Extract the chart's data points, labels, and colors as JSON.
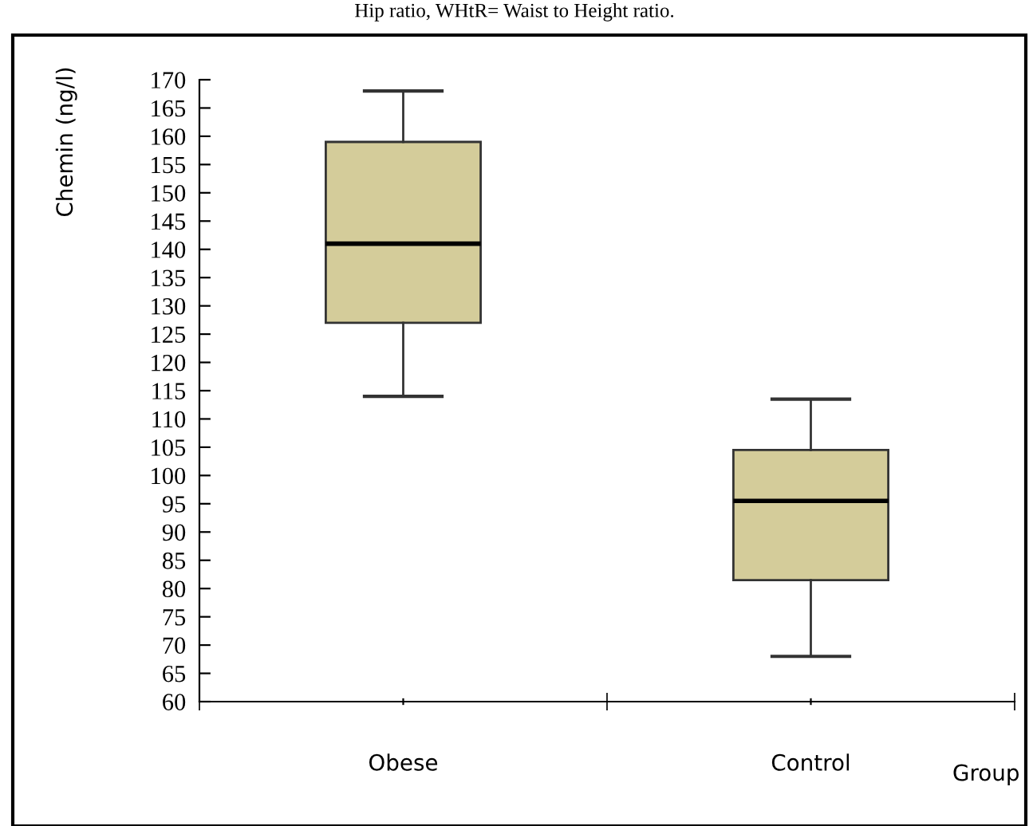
{
  "chart_data": {
    "type": "box",
    "categories": [
      "Obese",
      "Control"
    ],
    "xlabel": "Group",
    "ylabel": "Chemin (ng/l)",
    "boxes": [
      {
        "low": 114,
        "q1": 127,
        "median": 141,
        "q3": 159,
        "high": 168
      },
      {
        "low": 68,
        "q1": 81.5,
        "median": 95.5,
        "q3": 104.5,
        "high": 113.5
      }
    ],
    "color": "#d4cc9a",
    "ylim": [
      60,
      170
    ],
    "yticks": [
      60,
      65,
      70,
      75,
      80,
      85,
      90,
      95,
      100,
      105,
      110,
      115,
      120,
      125,
      130,
      135,
      140,
      145,
      150,
      155,
      160,
      165,
      170
    ],
    "grid": false,
    "annotations": [
      "Hip ratio, WHtR= Waist to Height ratio."
    ]
  }
}
